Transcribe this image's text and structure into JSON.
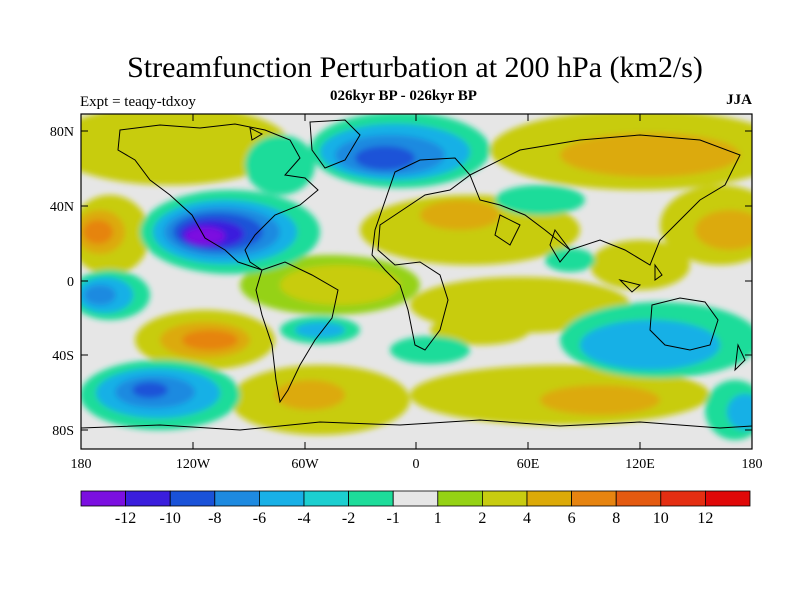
{
  "title": "Streamfunction Perturbation at 200 hPa (km2/s)",
  "subtitle": "026kyr BP - 026kyr BP",
  "experiment": "Expt = teaqy-tdxoy",
  "season": "JJA",
  "lat_labels": [
    "80N",
    "40N",
    "0",
    "40S",
    "80S"
  ],
  "lon_labels": [
    "180",
    "120W",
    "60W",
    "0",
    "60E",
    "120E",
    "180"
  ],
  "colorbar": {
    "labels": [
      "-12",
      "-10",
      "-8",
      "-6",
      "-4",
      "-2",
      "-1",
      "1",
      "2",
      "4",
      "6",
      "8",
      "10",
      "12"
    ],
    "colors": [
      "#7b0fe0",
      "#3a1edd",
      "#1a52d8",
      "#1e8ae0",
      "#18b0e6",
      "#1ccfd0",
      "#1ddc9a",
      "#e6e6e6",
      "#95d214",
      "#c8cc10",
      "#dcaa08",
      "#e68410",
      "#e45a10",
      "#e42e12",
      "#e00808"
    ]
  }
}
